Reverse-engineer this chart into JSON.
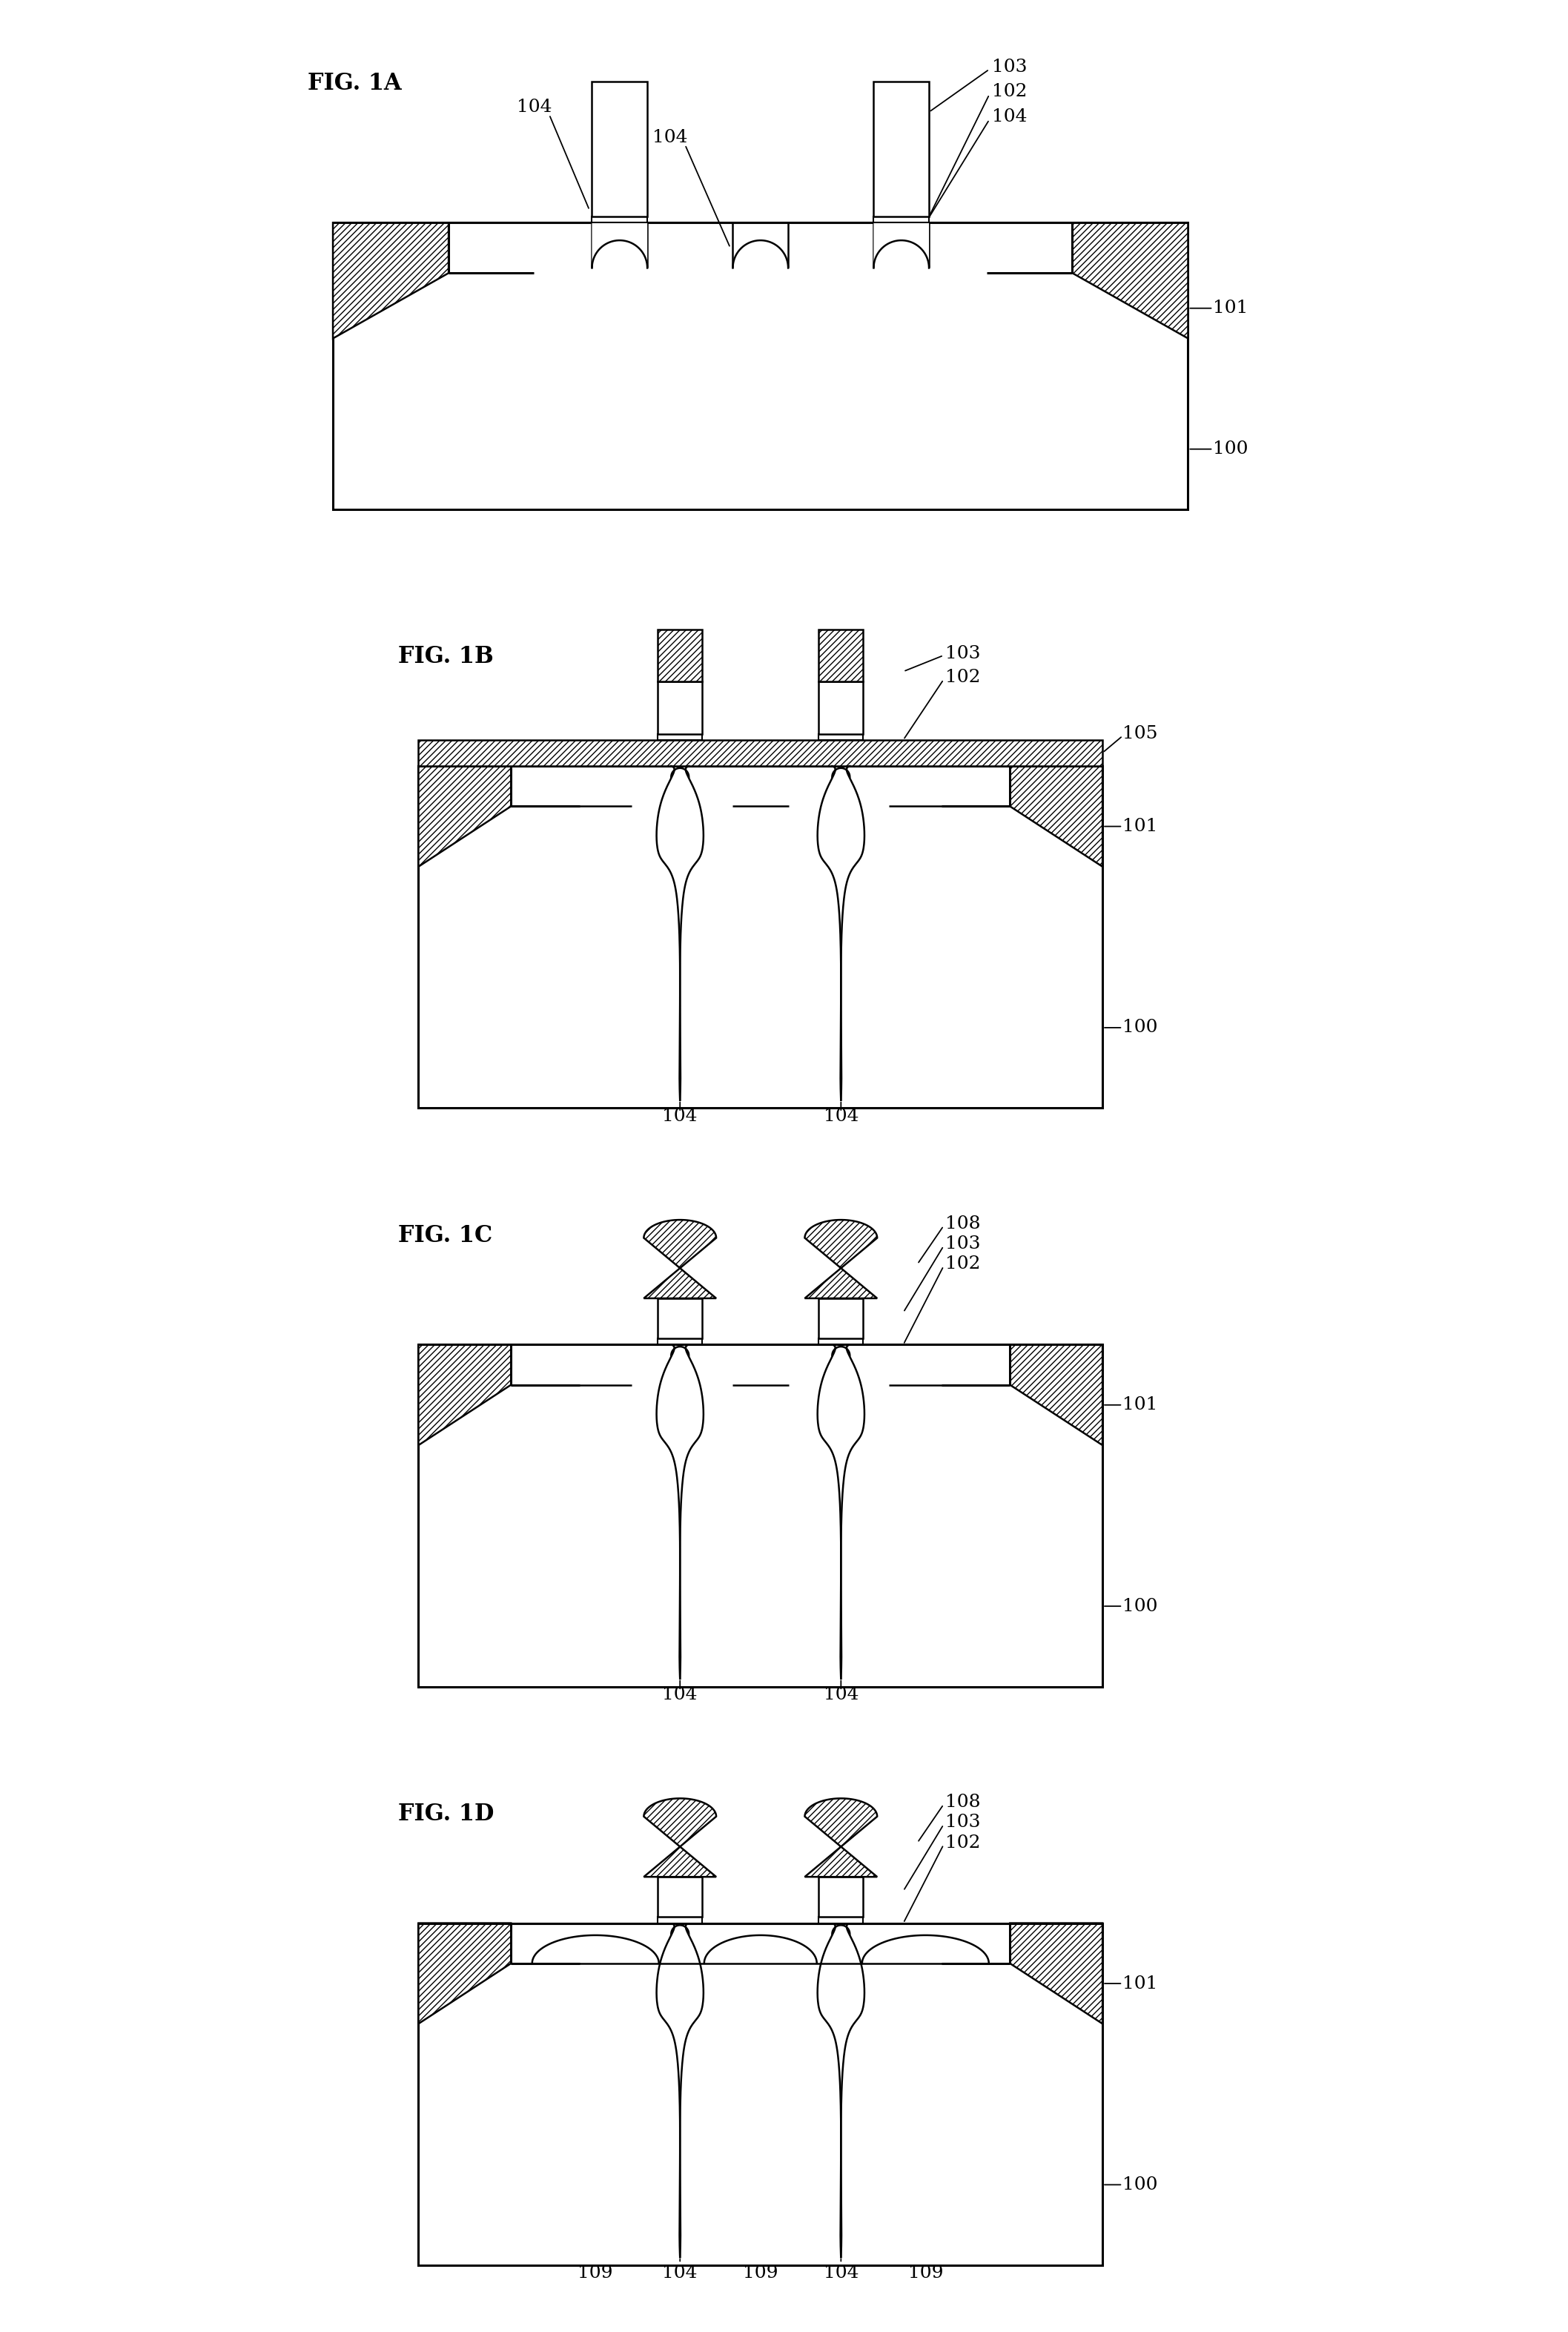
{
  "fig_labels": [
    "FIG. 1A",
    "FIG. 1B",
    "FIG. 1C",
    "FIG. 1D"
  ],
  "bg_color": "#ffffff",
  "line_color": "#000000",
  "hatch_color": "#000000",
  "hatch_pattern": "////",
  "annot_fontsize": 18,
  "fig_label_fontsize": 22,
  "fig_count": 4,
  "lw": 1.8,
  "lw_thick": 2.2
}
